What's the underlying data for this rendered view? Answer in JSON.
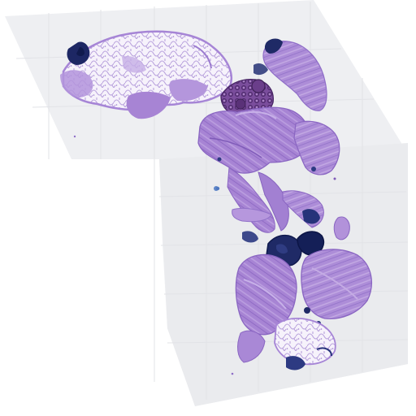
{
  "image": {
    "kind": "whole-slide histology scan",
    "stain": "H&E",
    "colors": {
      "background": "#ffffff",
      "slide_glass": "#ecedf0",
      "tile_seam": "#e2e3e7",
      "tissue_light": "#c3a8e0",
      "tissue_main": "#a784d4",
      "tissue_dark": "#7d5cb8",
      "fat_cells": "#f6f2fb",
      "fat_septa": "#b9a2dd",
      "dense_nuclei": "#1f2a66",
      "dense_nuclei_dark": "#101a4d",
      "glandular": "#6a3e8a",
      "glandular_dark": "#4b2868",
      "blue_spot": "#5f86c8"
    }
  }
}
